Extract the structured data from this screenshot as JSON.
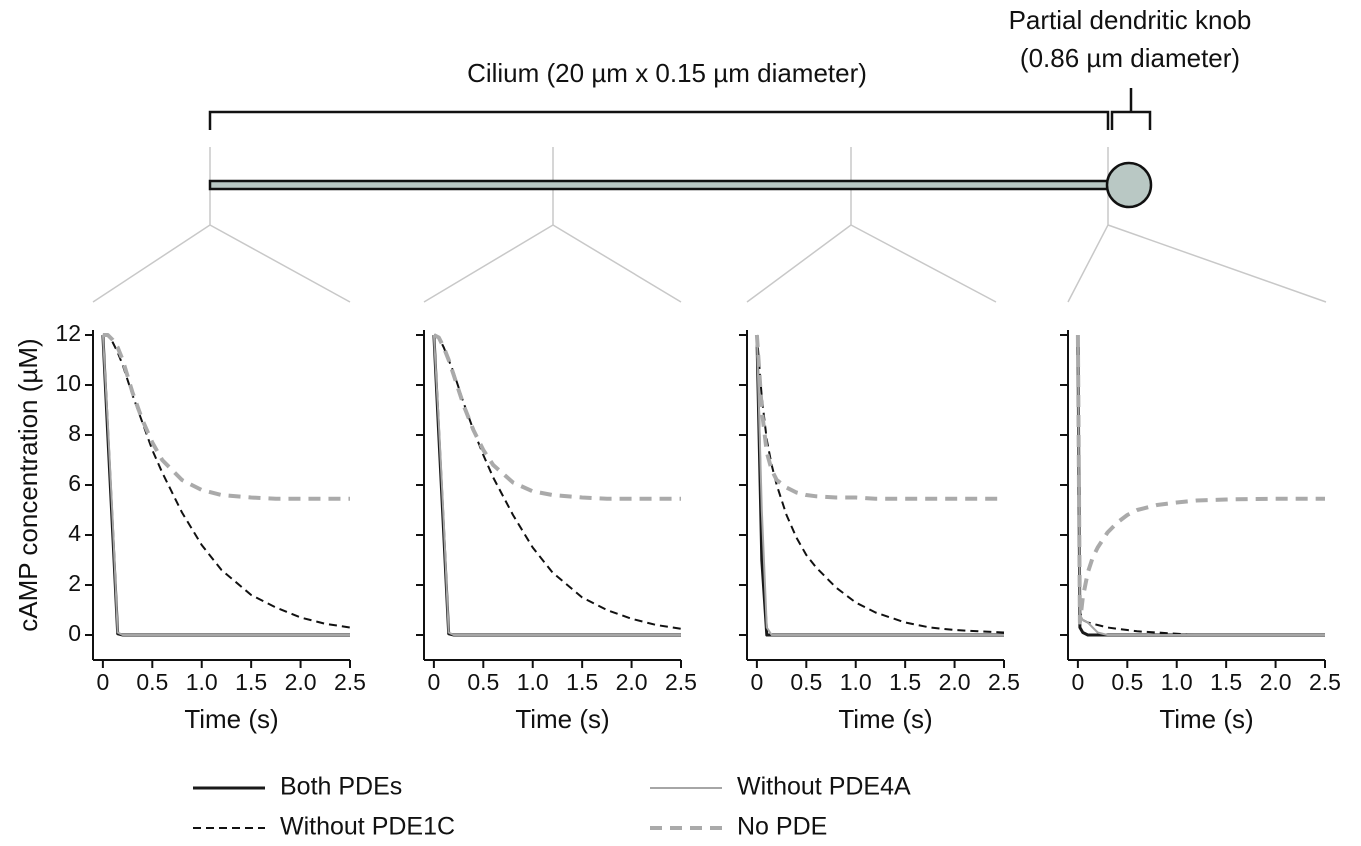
{
  "schematic": {
    "cilium_label": "Cilium (20 µm x 0.15 µm diameter)",
    "knob_label_1": "Partial dendritic knob",
    "knob_label_2": "(0.86 µm diameter)"
  },
  "chart_data": [
    {
      "type": "line",
      "y_label": "cAMP concentration (µM)",
      "x_label": "Time (s)",
      "ytick_labels": true,
      "xlim": [
        -0.1,
        2.5
      ],
      "ylim": [
        -1,
        12.2
      ],
      "xticks": [
        0,
        0.5,
        {
          "value": 1,
          "label": "1.0"
        },
        1.5,
        {
          "value": 2,
          "label": "2.0"
        },
        2.5
      ],
      "yticks": [
        0,
        2,
        4,
        6,
        8,
        10,
        12
      ],
      "x": [
        0,
        0.05,
        0.1,
        0.15,
        0.2,
        0.3,
        0.4,
        0.5,
        0.6,
        0.8,
        1.0,
        1.2,
        1.5,
        1.75,
        2.0,
        2.25,
        2.5
      ],
      "series": [
        {
          "name": "Both PDEs",
          "color": "#1a1a1a",
          "dashed": false,
          "width": 3,
          "values": [
            12,
            8,
            4,
            0.05,
            0,
            0,
            0,
            0,
            0,
            0,
            0,
            0,
            0,
            0,
            0,
            0,
            0
          ]
        },
        {
          "name": "Without PDE1C",
          "color": "#111111",
          "dashed": true,
          "width": 2,
          "values": [
            12,
            12,
            11.7,
            11.3,
            10.8,
            9.6,
            8.5,
            7.4,
            6.5,
            4.9,
            3.6,
            2.6,
            1.6,
            1.1,
            0.7,
            0.45,
            0.3
          ]
        },
        {
          "name": "Without PDE4A",
          "color": "#a6a6a6",
          "dashed": false,
          "width": 2,
          "values": [
            12,
            8.5,
            4.5,
            0.1,
            0,
            0,
            0,
            0,
            0,
            0,
            0,
            0,
            0,
            0,
            0,
            0,
            0
          ]
        },
        {
          "name": "No PDE",
          "color": "#aaaaaa",
          "dashed": true,
          "width": 4,
          "values": [
            12,
            12,
            11.8,
            11.5,
            11,
            9.7,
            8.6,
            7.7,
            7,
            6.2,
            5.8,
            5.6,
            5.5,
            5.45,
            5.45,
            5.45,
            5.45
          ]
        }
      ]
    },
    {
      "type": "line",
      "x_label": "Time (s)",
      "ytick_labels": false,
      "xlim": [
        -0.1,
        2.5
      ],
      "ylim": [
        -1,
        12.2
      ],
      "xticks": [
        0,
        0.5,
        {
          "value": 1,
          "label": "1.0"
        },
        1.5,
        {
          "value": 2,
          "label": "2.0"
        },
        2.5
      ],
      "yticks": [
        0,
        2,
        4,
        6,
        8,
        10,
        12
      ],
      "x": [
        0,
        0.05,
        0.1,
        0.15,
        0.2,
        0.3,
        0.4,
        0.5,
        0.6,
        0.8,
        1.0,
        1.2,
        1.5,
        1.75,
        2.0,
        2.25,
        2.5
      ],
      "series": [
        {
          "name": "Both PDEs",
          "color": "#1a1a1a",
          "dashed": false,
          "width": 3,
          "values": [
            12,
            8,
            4,
            0.05,
            0,
            0,
            0,
            0,
            0,
            0,
            0,
            0,
            0,
            0,
            0,
            0,
            0
          ]
        },
        {
          "name": "Without PDE1C",
          "color": "#111111",
          "dashed": true,
          "width": 2,
          "values": [
            12,
            11.9,
            11.5,
            11,
            10.5,
            9.3,
            8.2,
            7.2,
            6.3,
            4.8,
            3.5,
            2.5,
            1.5,
            1,
            0.65,
            0.4,
            0.25
          ]
        },
        {
          "name": "Without PDE4A",
          "color": "#a6a6a6",
          "dashed": false,
          "width": 2,
          "values": [
            12,
            8.5,
            4.5,
            0.1,
            0,
            0,
            0,
            0,
            0,
            0,
            0,
            0,
            0,
            0,
            0,
            0,
            0
          ]
        },
        {
          "name": "No PDE",
          "color": "#aaaaaa",
          "dashed": true,
          "width": 4,
          "values": [
            12,
            11.9,
            11.5,
            11,
            10.4,
            9.2,
            8.2,
            7.4,
            6.8,
            6.1,
            5.75,
            5.6,
            5.5,
            5.45,
            5.45,
            5.45,
            5.45
          ]
        }
      ]
    },
    {
      "type": "line",
      "x_label": "Time (s)",
      "ytick_labels": false,
      "xlim": [
        -0.1,
        2.5
      ],
      "ylim": [
        -1,
        12.2
      ],
      "xticks": [
        0,
        0.5,
        {
          "value": 1,
          "label": "1.0"
        },
        1.5,
        {
          "value": 2,
          "label": "2.0"
        },
        2.5
      ],
      "yticks": [
        0,
        2,
        4,
        6,
        8,
        10,
        12
      ],
      "x": [
        0,
        0.05,
        0.1,
        0.15,
        0.2,
        0.3,
        0.4,
        0.5,
        0.6,
        0.8,
        1.0,
        1.2,
        1.5,
        1.75,
        2.0,
        2.25,
        2.5
      ],
      "series": [
        {
          "name": "Both PDEs",
          "color": "#1a1a1a",
          "dashed": false,
          "width": 3,
          "values": [
            12,
            3,
            0,
            0,
            0,
            0,
            0,
            0,
            0,
            0,
            0,
            0,
            0,
            0,
            0,
            0,
            0
          ]
        },
        {
          "name": "Without PDE1C",
          "color": "#111111",
          "dashed": true,
          "width": 2,
          "values": [
            12,
            9.5,
            7.8,
            6.8,
            6,
            4.8,
            3.9,
            3.2,
            2.7,
            1.9,
            1.3,
            0.9,
            0.5,
            0.3,
            0.2,
            0.15,
            0.1
          ]
        },
        {
          "name": "Without PDE4A",
          "color": "#a6a6a6",
          "dashed": false,
          "width": 2,
          "values": [
            12,
            5,
            0.3,
            0,
            0,
            0,
            0,
            0,
            0,
            0,
            0,
            0,
            0,
            0,
            0,
            0,
            0
          ]
        },
        {
          "name": "No PDE",
          "color": "#aaaaaa",
          "dashed": true,
          "width": 4,
          "values": [
            12,
            9,
            7.3,
            6.6,
            6.2,
            5.9,
            5.7,
            5.6,
            5.55,
            5.5,
            5.5,
            5.45,
            5.45,
            5.45,
            5.45,
            5.45,
            5.45
          ]
        }
      ]
    },
    {
      "type": "line",
      "x_label": "Time (s)",
      "ytick_labels": false,
      "xlim": [
        -0.1,
        2.5
      ],
      "ylim": [
        -1,
        12.2
      ],
      "xticks": [
        0,
        0.5,
        {
          "value": 1,
          "label": "1.0"
        },
        1.5,
        {
          "value": 2,
          "label": "2.0"
        },
        2.5
      ],
      "yticks": [
        0,
        2,
        4,
        6,
        8,
        10,
        12
      ],
      "x": [
        0,
        0.02,
        0.05,
        0.1,
        0.15,
        0.2,
        0.3,
        0.4,
        0.5,
        0.6,
        0.8,
        1.0,
        1.2,
        1.5,
        1.75,
        2.0,
        2.25,
        2.5
      ],
      "series": [
        {
          "name": "Both PDEs",
          "color": "#1a1a1a",
          "dashed": false,
          "width": 3,
          "values": [
            12,
            0.3,
            0.1,
            0,
            0,
            0,
            0,
            0,
            0,
            0,
            0,
            0,
            0,
            0,
            0,
            0,
            0,
            0
          ]
        },
        {
          "name": "Without PDE1C",
          "color": "#111111",
          "dashed": true,
          "width": 2,
          "values": [
            12,
            0.9,
            0.6,
            0.5,
            0.45,
            0.4,
            0.3,
            0.25,
            0.2,
            0.15,
            0.1,
            0.05,
            0,
            0,
            0,
            0,
            0,
            0
          ]
        },
        {
          "name": "Without PDE4A",
          "color": "#a6a6a6",
          "dashed": false,
          "width": 2,
          "values": [
            12,
            0.8,
            0.6,
            0.5,
            0.3,
            0.1,
            0,
            0,
            0,
            0,
            0,
            0,
            0,
            0,
            0,
            0,
            0,
            0
          ]
        },
        {
          "name": "No PDE",
          "color": "#aaaaaa",
          "dashed": true,
          "width": 4,
          "values": [
            12,
            0.5,
            1.5,
            2.5,
            3.1,
            3.5,
            4.1,
            4.5,
            4.8,
            5,
            5.2,
            5.3,
            5.38,
            5.42,
            5.44,
            5.45,
            5.45,
            5.45
          ]
        }
      ]
    }
  ]
}
